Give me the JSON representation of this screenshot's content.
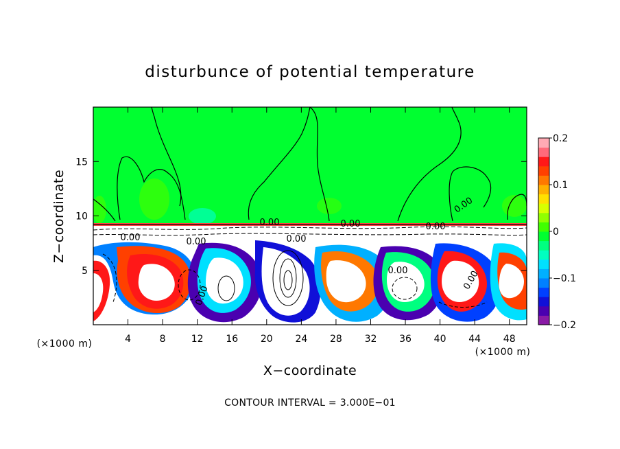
{
  "chart_data": {
    "type": "heatmap",
    "title": "disturbunce of potential temperature",
    "xlabel": "X−coordinate",
    "ylabel": "Z−coordinate",
    "x_unit_left": "(×1000 m)",
    "x_unit_right": "(×1000 m)",
    "xlim": [
      0,
      50
    ],
    "ylim": [
      0,
      20
    ],
    "x_ticks": [
      4,
      8,
      12,
      16,
      20,
      24,
      28,
      32,
      36,
      40,
      44,
      48
    ],
    "y_ticks": [
      5,
      10,
      15
    ],
    "colorbar": {
      "range": [
        -0.2,
        0.2
      ],
      "tick_values": [
        0.2,
        0.1,
        0,
        -0.1,
        -0.2
      ],
      "tick_labels": [
        "0.2",
        "0.1",
        "0",
        "−0.1",
        "−0.2"
      ],
      "colors": [
        "#8a1aa6",
        "#4a00b0",
        "#1010d8",
        "#0040ff",
        "#0080ff",
        "#00b0ff",
        "#00e0ff",
        "#00ffc0",
        "#00ff80",
        "#00ff30",
        "#40ff00",
        "#90ff00",
        "#d8ff00",
        "#ffe000",
        "#ffb000",
        "#ff7800",
        "#ff4000",
        "#ff1818",
        "#ff6a7a",
        "#ffaab4"
      ]
    },
    "contour_labels": [
      "0.00",
      "0.00",
      "0.00",
      "0.00",
      "0.00",
      "0.00",
      "0.00",
      "0.00",
      "0.00",
      "0.00"
    ],
    "contour_interval_text": "CONTOUR INTERVAL = 3.000E−01",
    "background_color": "#00ff30",
    "regions": [
      {
        "x": [
          0,
          50
        ],
        "z": [
          9.5,
          20
        ],
        "value": 0.0
      },
      {
        "x": [
          0,
          50
        ],
        "z": [
          0,
          9
        ],
        "value": "mixed"
      }
    ]
  }
}
